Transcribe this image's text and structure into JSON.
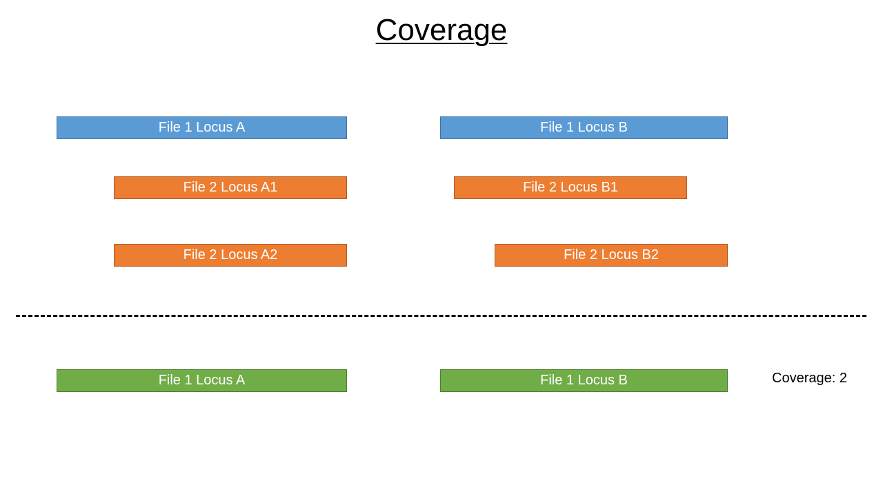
{
  "title": "Coverage",
  "colors": {
    "file1": "#5b9bd5",
    "file2": "#ed7d31",
    "result": "#70ad47"
  },
  "file1": {
    "locus_a": "File 1 Locus A",
    "locus_b": "File 1 Locus B"
  },
  "file2": {
    "locus_a1": "File 2 Locus A1",
    "locus_a2": "File 2 Locus A2",
    "locus_b1": "File 2 Locus B1",
    "locus_b2": "File 2 Locus B2"
  },
  "result": {
    "locus_a": "File 1 Locus A",
    "locus_b": "File 1 Locus B",
    "coverage": "Coverage: 2"
  }
}
